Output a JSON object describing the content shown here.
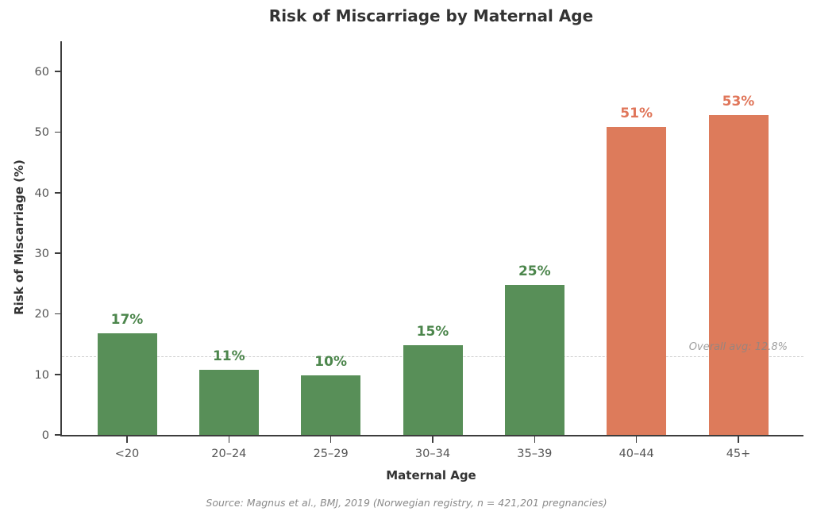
{
  "title": "Risk of Miscarriage by Maternal Age",
  "source": "Source: Magnus et al., BMJ, 2019 (Norwegian registry, n = 421,201 pregnancies)",
  "colors": {
    "green_bar": "#588f58",
    "green_label": "#4c864c",
    "orange_bar": "#dd7b5b",
    "orange_label": "#e0765a",
    "avg_line": "#cdcdcd",
    "annotation_text": "#878787",
    "title_text": "#333333",
    "axis_spine": "#3d3d3d",
    "tick_label": "#555555",
    "source_text": "#8a8a8a"
  },
  "chart_data": {
    "type": "bar",
    "title": "Risk of Miscarriage by Maternal Age",
    "xlabel": "Maternal Age",
    "ylabel": "Risk of Miscarriage (%)",
    "categories": [
      "<20",
      "20–24",
      "25–29",
      "30–34",
      "35–39",
      "40–44",
      "45+"
    ],
    "values": [
      16.8,
      10.8,
      9.8,
      14.8,
      24.8,
      50.8,
      52.8
    ],
    "bar_labels": [
      "17%",
      "11%",
      "10%",
      "15%",
      "25%",
      "51%",
      "53%"
    ],
    "bar_groups": [
      "green",
      "green",
      "green",
      "green",
      "green",
      "orange",
      "orange"
    ],
    "ylim": [
      0,
      65
    ],
    "yticks": [
      0,
      10,
      20,
      30,
      40,
      50,
      60
    ],
    "grid": false,
    "legend": "none",
    "avg_line": {
      "value": 12.8,
      "label": "Overall avg: 12.8%",
      "style": "dashed"
    }
  }
}
